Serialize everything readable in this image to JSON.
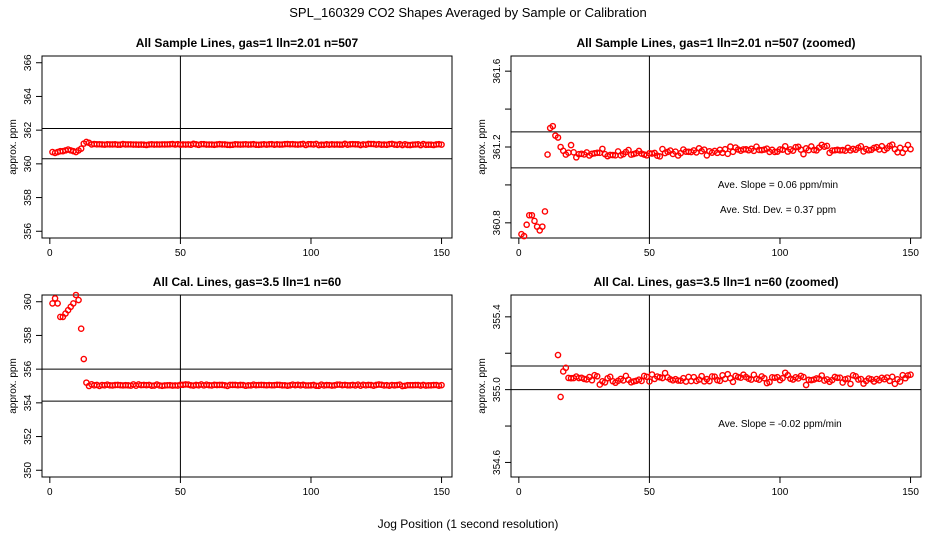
{
  "figure": {
    "title": "SPL_160329  CO2 Shapes Averaged by Sample or Calibration",
    "xlabel": "Jog Position (1 second resolution)"
  },
  "colors": {
    "points": "#ff0000",
    "axes": "#000000",
    "background": "#ffffff"
  },
  "chart_data": [
    {
      "type": "scatter",
      "title": "All Sample Lines, gas=1 lln=2.01 n=507",
      "xlabel": "",
      "ylabel": "approx. ppm",
      "xlim": [
        -3,
        154
      ],
      "ylim": [
        355.6,
        366.4
      ],
      "xticks": [
        0,
        50,
        100,
        150
      ],
      "yticks": [
        356,
        358,
        360,
        362,
        364,
        366
      ],
      "vline": 50,
      "hlines": [
        360.3,
        362.1
      ],
      "annotations": [],
      "series": [
        {
          "segments": [
            {
              "x": [
                1,
                2,
                3,
                4,
                5,
                6,
                7,
                8,
                9,
                10,
                11,
                12,
                13,
                14,
                15
              ],
              "y": [
                360.7,
                360.65,
                360.7,
                360.75,
                360.75,
                360.8,
                360.85,
                360.8,
                360.75,
                360.7,
                360.8,
                360.9,
                361.2,
                361.3,
                361.25
              ]
            },
            {
              "range": [
                16,
                150
              ],
              "base": 361.15,
              "amp": 0.05
            }
          ]
        }
      ]
    },
    {
      "type": "scatter",
      "title": "All Sample Lines, gas=1 lln=2.01 n=507 (zoomed)",
      "xlabel": "",
      "ylabel": "approx. ppm",
      "xlim": [
        -3,
        154
      ],
      "ylim": [
        360.72,
        361.68
      ],
      "xticks": [
        0,
        50,
        100,
        150
      ],
      "yticks": [
        360.8,
        361.2,
        361.6
      ],
      "yticks_minor": [
        361.0,
        361.4
      ],
      "vline": 50,
      "hlines": [
        361.28,
        361.09
      ],
      "annotations": [
        "Ave. Slope =  0.06  ppm/min",
        "Ave. Std. Dev. =  0.37  ppm"
      ],
      "series": [
        {
          "segments": [
            {
              "x": [
                1,
                2,
                3,
                4,
                5,
                6,
                7,
                8,
                9,
                10,
                11,
                12,
                13,
                14,
                15,
                16,
                17,
                18,
                19,
                20
              ],
              "y": [
                360.74,
                360.73,
                360.79,
                360.84,
                360.84,
                360.81,
                360.78,
                360.76,
                360.78,
                360.86,
                361.16,
                361.3,
                361.31,
                361.26,
                361.25,
                361.2,
                361.18,
                361.16,
                361.17,
                361.21
              ]
            },
            {
              "range": [
                21,
                150
              ],
              "base": 361.16,
              "amp": 0.03,
              "slope": 0.0003
            }
          ]
        }
      ]
    },
    {
      "type": "scatter",
      "title": "All Cal. Lines, gas=3.5 lln=1 n=60",
      "xlabel": "",
      "ylabel": "approx. ppm",
      "xlim": [
        -3,
        154
      ],
      "ylim": [
        349.6,
        360.4
      ],
      "xticks": [
        0,
        50,
        100,
        150
      ],
      "yticks": [
        350,
        352,
        354,
        356,
        358,
        360
      ],
      "vline": 50,
      "hlines": [
        356.0,
        354.1
      ],
      "annotations": [],
      "series": [
        {
          "segments": [
            {
              "x": [
                1,
                2,
                3,
                4,
                5,
                6,
                7,
                8,
                9,
                10,
                11,
                12,
                13,
                14,
                15,
                16
              ],
              "y": [
                359.9,
                360.2,
                359.9,
                359.1,
                359.1,
                359.3,
                359.5,
                359.7,
                359.9,
                360.4,
                360.1,
                358.4,
                356.6,
                355.2,
                355.0,
                355.1
              ]
            },
            {
              "range": [
                17,
                150
              ],
              "base": 355.05,
              "amp": 0.06
            }
          ]
        }
      ]
    },
    {
      "type": "scatter",
      "title": "All Cal. Lines, gas=3.5 lln=1 n=60 (zoomed)",
      "xlabel": "",
      "ylabel": "approx. ppm",
      "xlim": [
        -3,
        154
      ],
      "ylim": [
        354.52,
        355.52
      ],
      "xticks": [
        0,
        50,
        100,
        150
      ],
      "yticks": [
        354.6,
        355.0,
        355.4
      ],
      "yticks_minor": [
        354.8,
        355.2
      ],
      "vline": 50,
      "hlines": [
        355.13,
        355.0
      ],
      "annotations": [
        "Ave. Slope =  -0.02  ppm/min"
      ],
      "series": [
        {
          "segments": [
            {
              "x": [
                15,
                16,
                17,
                18
              ],
              "y": [
                355.19,
                354.96,
                355.1,
                355.12
              ]
            },
            {
              "range": [
                19,
                150
              ],
              "base": 355.06,
              "amp": 0.04
            }
          ]
        }
      ]
    }
  ]
}
